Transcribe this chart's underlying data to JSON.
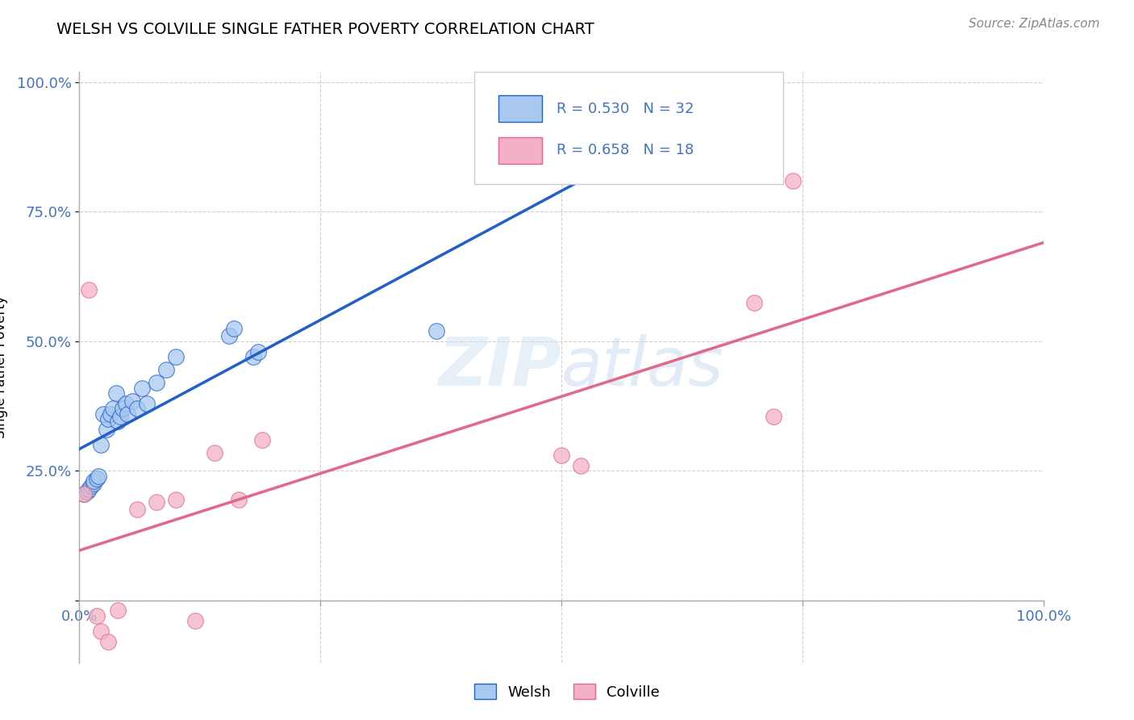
{
  "title": "WELSH VS COLVILLE SINGLE FATHER POVERTY CORRELATION CHART",
  "source": "Source: ZipAtlas.com",
  "ylabel_label": "Single Father Poverty",
  "welsh_R": 0.53,
  "welsh_N": 32,
  "colville_R": 0.658,
  "colville_N": 18,
  "welsh_color": "#A8C8F0",
  "colville_color": "#F4B0C4",
  "welsh_line_color": "#2060C8",
  "colville_line_color": "#E06888",
  "background_color": "#ffffff",
  "grid_color": "#cccccc",
  "xlim": [
    0.0,
    1.0
  ],
  "ylim": [
    -0.12,
    1.02
  ],
  "welsh_x": [
    0.005,
    0.008,
    0.01,
    0.012,
    0.015,
    0.015,
    0.018,
    0.02,
    0.022,
    0.025,
    0.028,
    0.03,
    0.032,
    0.035,
    0.038,
    0.04,
    0.042,
    0.045,
    0.048,
    0.05,
    0.055,
    0.06,
    0.065,
    0.07,
    0.08,
    0.09,
    0.1,
    0.155,
    0.16,
    0.18,
    0.185,
    0.37
  ],
  "welsh_y": [
    0.205,
    0.21,
    0.215,
    0.22,
    0.225,
    0.23,
    0.235,
    0.24,
    0.3,
    0.36,
    0.33,
    0.35,
    0.36,
    0.37,
    0.4,
    0.345,
    0.355,
    0.37,
    0.38,
    0.36,
    0.385,
    0.37,
    0.41,
    0.38,
    0.42,
    0.445,
    0.47,
    0.51,
    0.525,
    0.47,
    0.48,
    0.52
  ],
  "colville_x": [
    0.005,
    0.01,
    0.018,
    0.022,
    0.03,
    0.04,
    0.06,
    0.08,
    0.1,
    0.12,
    0.14,
    0.165,
    0.19,
    0.5,
    0.52,
    0.7,
    0.72,
    0.74
  ],
  "colville_y": [
    0.205,
    0.6,
    -0.03,
    -0.06,
    -0.08,
    -0.02,
    0.175,
    0.19,
    0.195,
    -0.04,
    0.285,
    0.195,
    0.31,
    0.28,
    0.26,
    0.575,
    0.355,
    0.81
  ]
}
